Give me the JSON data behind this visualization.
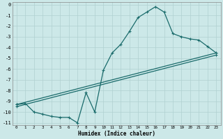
{
  "xlabel": "Humidex (Indice chaleur)",
  "bg_color": "#cce8e8",
  "grid_color": "#b0d0d0",
  "line_color": "#1a6b6b",
  "xlim": [
    -0.5,
    23.5
  ],
  "ylim": [
    -11.2,
    0.2
  ],
  "xticks": [
    0,
    1,
    2,
    3,
    4,
    5,
    6,
    7,
    8,
    9,
    10,
    11,
    12,
    13,
    14,
    15,
    16,
    17,
    18,
    19,
    20,
    21,
    22,
    23
  ],
  "yticks": [
    0,
    -1,
    -2,
    -3,
    -4,
    -5,
    -6,
    -7,
    -8,
    -9,
    -10,
    -11
  ],
  "line1_x": [
    0,
    1,
    2,
    3,
    4,
    5,
    6,
    7,
    8,
    9,
    10,
    11,
    12,
    13,
    14,
    15,
    16,
    17,
    18,
    19,
    20,
    21,
    22,
    23
  ],
  "line1_y": [
    -9.3,
    -9.2,
    -10.0,
    -10.2,
    -10.4,
    -10.5,
    -10.5,
    -11.0,
    -8.2,
    -10.0,
    -6.1,
    -4.5,
    -3.7,
    -2.5,
    -1.2,
    -0.7,
    -0.2,
    -0.7,
    -2.7,
    -3.0,
    -3.2,
    -3.3,
    -3.9,
    -4.5
  ],
  "line2_x": [
    0,
    23
  ],
  "line2_y": [
    -9.3,
    -4.5
  ],
  "line3_x": [
    0,
    23
  ],
  "line3_y": [
    -9.5,
    -4.7
  ],
  "figw": 3.2,
  "figh": 2.0,
  "dpi": 100
}
